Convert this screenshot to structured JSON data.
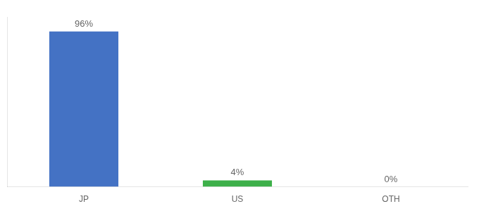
{
  "chart_data": {
    "type": "bar",
    "categories": [
      "JP",
      "US",
      "OTH"
    ],
    "values": [
      96,
      4,
      0
    ],
    "value_labels": [
      "96%",
      "4%",
      "0%"
    ],
    "colors": [
      "#4472c4",
      "#3db04a",
      "#4472c4"
    ],
    "ylim": [
      0,
      105
    ],
    "grid": false,
    "data_labels": true,
    "tick_labels": "x"
  }
}
